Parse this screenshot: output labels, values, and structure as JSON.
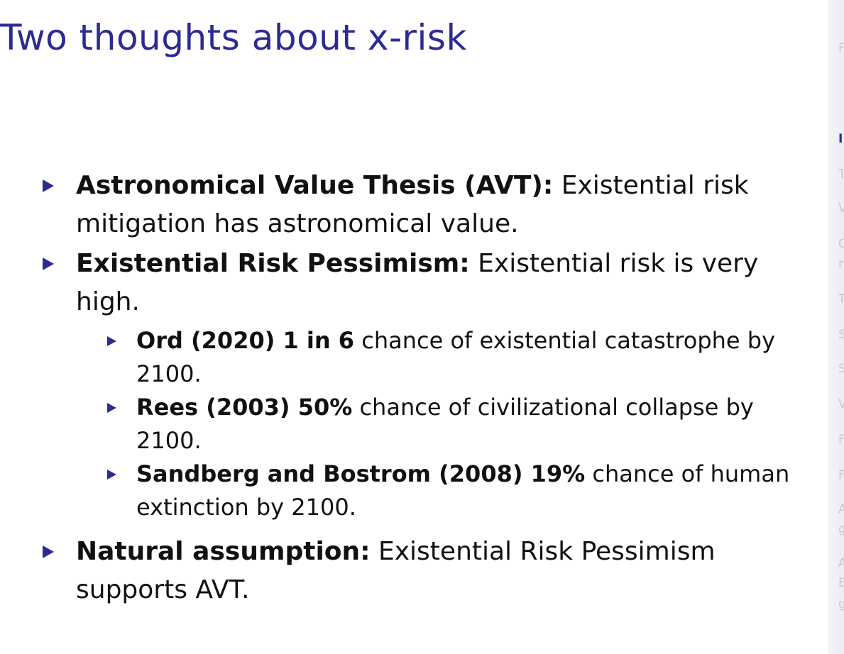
{
  "slide": {
    "title": "Two thoughts about x-risk",
    "bullets": [
      {
        "bold": "Astronomical Value Thesis (AVT):",
        "text": " Existential risk mitigation has astronomical value."
      },
      {
        "bold": "Existential Risk Pessimism:",
        "text": " Existential risk is very high."
      },
      {
        "bold": "Natural assumption:",
        "text": " Existential Risk Pessimism supports AVT."
      }
    ],
    "subbullets": [
      {
        "bold": "Ord (2020) 1 in 6",
        "text": " chance of existential catastrophe by 2100."
      },
      {
        "bold": "Rees (2003) 50%",
        "text": " chance of civilizational collapse by 2100."
      },
      {
        "bold": "Sandberg and Bostrom (2008) 19%",
        "text": " chance of human extinction by 2100."
      }
    ]
  },
  "sidebar": {
    "letters": [
      "F",
      "I",
      "T",
      "V",
      "C",
      "r",
      "T",
      "S",
      "S",
      "V",
      "F",
      "F",
      "A",
      "g",
      "A",
      "E",
      "g"
    ]
  }
}
